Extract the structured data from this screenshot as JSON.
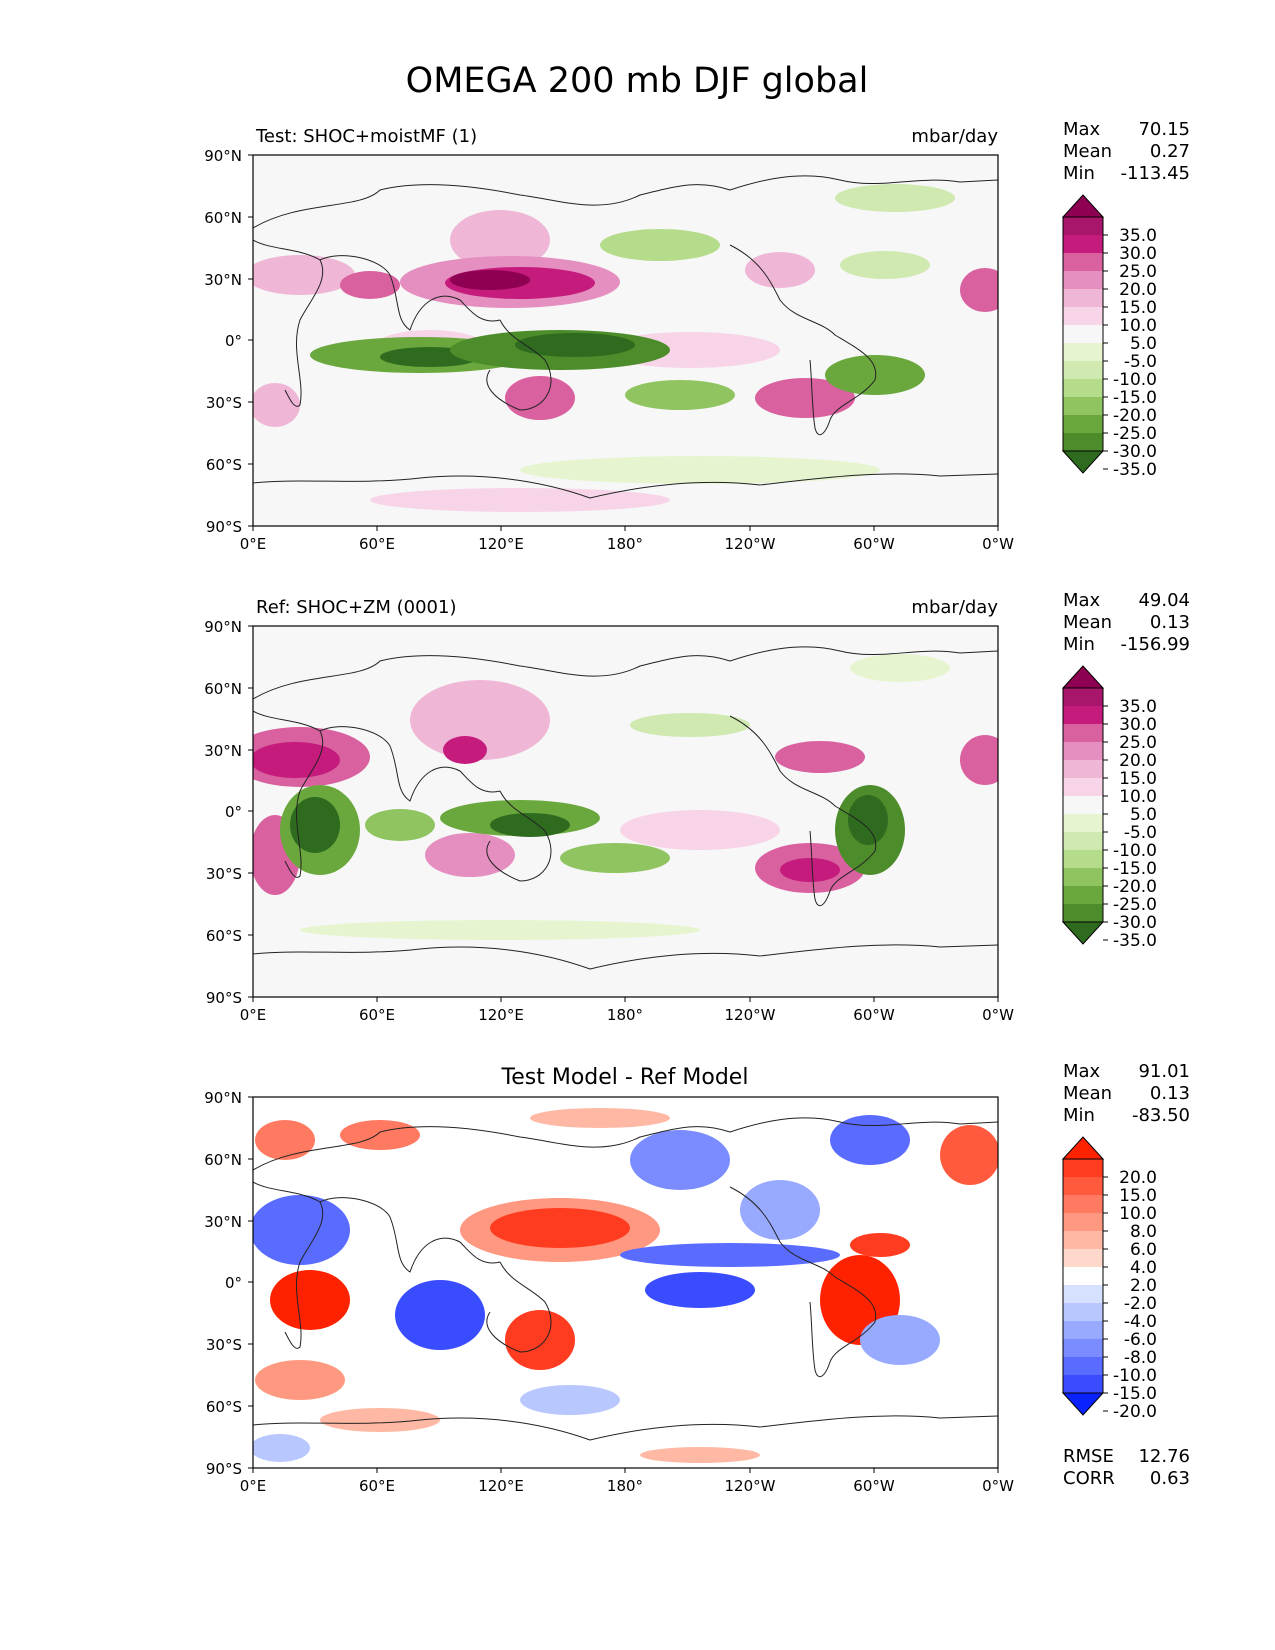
{
  "figure_title": "OMEGA 200 mb DJF global",
  "lat_ticks": [
    "90°N",
    "60°N",
    "30°N",
    "0°",
    "30°S",
    "60°S",
    "90°S"
  ],
  "lon_ticks": [
    "0°E",
    "60°E",
    "120°E",
    "180°",
    "120°W",
    "60°W",
    "0°W"
  ],
  "colors": {
    "ocean_bg": "#f7f7f7",
    "coast": "#222222",
    "pos_strong": "#8e0152",
    "neg_strong": "#276419",
    "diff_pos": "#ff2200",
    "diff_neg": "#0022ff"
  },
  "panels": [
    {
      "id": "test",
      "title_left": "Test: SHOC+moistMF (1)",
      "title_center": "",
      "units": "mbar/day",
      "stats": {
        "Max": "70.15",
        "Mean": "0.27",
        "Min": "-113.45"
      },
      "colorbar": {
        "levels": [
          "35.0",
          "30.0",
          "25.0",
          "20.0",
          "15.0",
          "10.0",
          "5.0",
          "-5.0",
          "-10.0",
          "-15.0",
          "-20.0",
          "-25.0",
          "-30.0",
          "-35.0"
        ],
        "colors": [
          "#8e0152",
          "#a8166b",
          "#c51b7d",
          "#d9619f",
          "#e58fc0",
          "#efb6d6",
          "#f7d4e8",
          "#f7f7f7",
          "#e6f5d0",
          "#cfe9b0",
          "#b4dc8b",
          "#8fc461",
          "#6aa83e",
          "#4d8c2b",
          "#2f6b1f"
        ]
      },
      "field": "omega_test",
      "extra_stats": null
    },
    {
      "id": "ref",
      "title_left": "Ref: SHOC+ZM (0001)",
      "title_center": "",
      "units": "mbar/day",
      "stats": {
        "Max": "49.04",
        "Mean": "0.13",
        "Min": "-156.99"
      },
      "colorbar": {
        "levels": [
          "35.0",
          "30.0",
          "25.0",
          "20.0",
          "15.0",
          "10.0",
          "5.0",
          "-5.0",
          "-10.0",
          "-15.0",
          "-20.0",
          "-25.0",
          "-30.0",
          "-35.0"
        ],
        "colors": [
          "#8e0152",
          "#a8166b",
          "#c51b7d",
          "#d9619f",
          "#e58fc0",
          "#efb6d6",
          "#f7d4e8",
          "#f7f7f7",
          "#e6f5d0",
          "#cfe9b0",
          "#b4dc8b",
          "#8fc461",
          "#6aa83e",
          "#4d8c2b",
          "#2f6b1f"
        ]
      },
      "field": "omega_ref",
      "extra_stats": null
    },
    {
      "id": "diff",
      "title_left": "",
      "title_center": "Test Model - Ref Model",
      "units": "",
      "stats": {
        "Max": "91.01",
        "Mean": "0.13",
        "Min": "-83.50"
      },
      "colorbar": {
        "levels": [
          "20.0",
          "15.0",
          "10.0",
          "8.0",
          "6.0",
          "4.0",
          "2.0",
          "-2.0",
          "-4.0",
          "-6.0",
          "-8.0",
          "-10.0",
          "-15.0",
          "-20.0"
        ],
        "colors": [
          "#ff2200",
          "#ff3b20",
          "#ff5a3e",
          "#ff7a60",
          "#ff9880",
          "#ffb8a4",
          "#ffd8cc",
          "#ffffff",
          "#d6e0ff",
          "#b8c8ff",
          "#98aaff",
          "#7a8cff",
          "#5a6cff",
          "#3a4cff",
          "#0a22ff"
        ]
      },
      "field": "omega_diff",
      "extra_stats": {
        "RMSE": "12.76",
        "CORR": "0.63"
      }
    }
  ]
}
